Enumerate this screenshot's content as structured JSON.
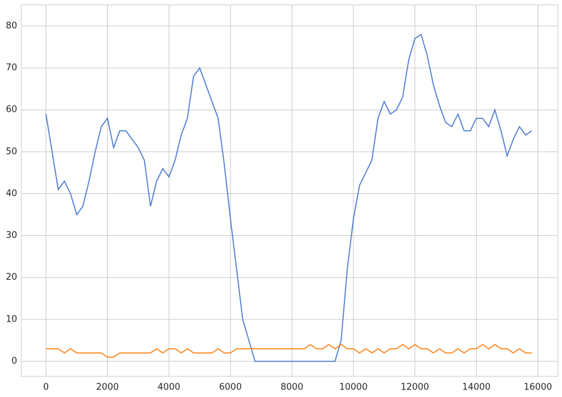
{
  "chart_data": {
    "type": "line",
    "x": [
      0,
      200,
      400,
      600,
      800,
      1000,
      1200,
      1400,
      1600,
      1800,
      2000,
      2200,
      2400,
      2600,
      2800,
      3000,
      3200,
      3400,
      3600,
      3800,
      4000,
      4200,
      4400,
      4600,
      4800,
      5000,
      5200,
      5400,
      5600,
      5800,
      6000,
      6200,
      6400,
      6600,
      6800,
      7000,
      7200,
      7400,
      7600,
      7800,
      8000,
      8200,
      8400,
      8600,
      8800,
      9000,
      9200,
      9400,
      9600,
      9800,
      10000,
      10200,
      10400,
      10600,
      10800,
      11000,
      11200,
      11400,
      11600,
      11800,
      12000,
      12200,
      12400,
      12600,
      12800,
      13000,
      13200,
      13400,
      13600,
      13800,
      14000,
      14200,
      14400,
      14600,
      14800,
      15000,
      15200,
      15400,
      15600,
      15800
    ],
    "series": [
      {
        "color": "#4878d0",
        "values": [
          59,
          50,
          41,
          43,
          40,
          35,
          37,
          43,
          50,
          56,
          58,
          51,
          55,
          55,
          53,
          51,
          48,
          37,
          43,
          46,
          44,
          48,
          54,
          58,
          68,
          70,
          66,
          62,
          58,
          47,
          34,
          22,
          10,
          5,
          0,
          0,
          0,
          0,
          0,
          0,
          0,
          0,
          0,
          0,
          0,
          0,
          0,
          0,
          5,
          22,
          34,
          42,
          45,
          48,
          58,
          62,
          59,
          60,
          63,
          72,
          77,
          78,
          73,
          66,
          61,
          57,
          56,
          59,
          55,
          55,
          58,
          58,
          56,
          60,
          55,
          49,
          53,
          56,
          54,
          55
        ]
      },
      {
        "color": "#ff7f0e",
        "values": [
          3,
          3,
          3,
          2,
          3,
          2,
          2,
          2,
          2,
          2,
          1,
          1,
          2,
          2,
          2,
          2,
          2,
          2,
          3,
          2,
          3,
          3,
          2,
          3,
          2,
          2,
          2,
          2,
          3,
          2,
          2,
          3,
          3,
          3,
          3,
          3,
          3,
          3,
          3,
          3,
          3,
          3,
          3,
          4,
          3,
          3,
          4,
          3,
          4,
          3,
          3,
          2,
          3,
          2,
          3,
          2,
          3,
          3,
          4,
          3,
          4,
          3,
          3,
          2,
          3,
          2,
          2,
          3,
          2,
          3,
          3,
          4,
          3,
          4,
          3,
          3,
          2,
          3,
          2,
          2
        ]
      }
    ],
    "xlim": [
      -803,
      16650
    ],
    "ylim": [
      -3.6,
      85.07
    ],
    "xticks": [
      0,
      2000,
      4000,
      6000,
      8000,
      10000,
      12000,
      14000,
      16000
    ],
    "yticks": [
      0,
      10,
      20,
      30,
      40,
      50,
      60,
      70,
      80
    ],
    "grid": true
  }
}
